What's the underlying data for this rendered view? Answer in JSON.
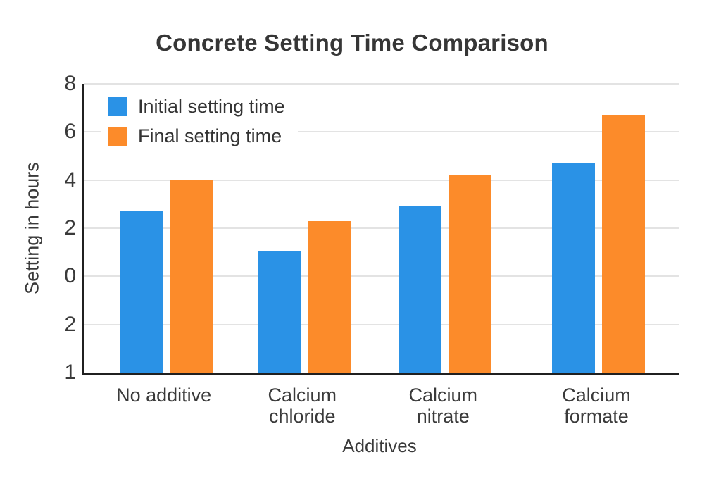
{
  "chart_data": {
    "type": "bar",
    "title": "Concrete Setting Time Comparison",
    "xlabel": "Additives",
    "ylabel": "Setting in hours",
    "categories": [
      "No additive",
      "Calcium chloride",
      "Calcium nitrate",
      "Calcium formate"
    ],
    "categories_lines": [
      [
        "No additive"
      ],
      [
        "Calcium",
        "chloride"
      ],
      [
        "Calcium",
        "nitrate"
      ],
      [
        "Calcium",
        "formate"
      ]
    ],
    "series": [
      {
        "name": "Initial setting time",
        "color": "#2A92E6",
        "values": [
          2.7,
          1.05,
          2.9,
          4.7
        ]
      },
      {
        "name": "Final setting time",
        "color": "#FC8B2A",
        "values": [
          4.0,
          2.3,
          4.2,
          6.7
        ]
      }
    ],
    "y_ticks_top_to_bottom": [
      "8",
      "6",
      "4",
      "2",
      "0",
      "2",
      "1"
    ],
    "legend_position": "top-left inside plot",
    "grid": true
  },
  "colors": {
    "axis": "#202020",
    "gridline": "#E3E3E3",
    "text": "#3A3A3A",
    "background": "#FFFFFF",
    "series_blue": "#2A92E6",
    "series_orange": "#FC8B2A"
  }
}
